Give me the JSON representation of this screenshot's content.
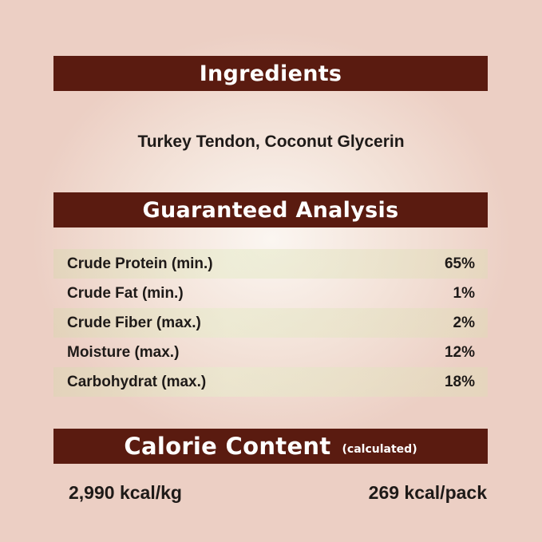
{
  "ingredients": {
    "title": "Ingredients",
    "text": "Turkey Tendon, Coconut Glycerin"
  },
  "analysis": {
    "title": "Guaranteed Analysis",
    "rows": [
      {
        "label": "Crude Protein (min.)",
        "value": "65%"
      },
      {
        "label": "Crude Fat (min.)",
        "value": "1%"
      },
      {
        "label": "Crude Fiber (max.)",
        "value": "2%"
      },
      {
        "label": "Moisture (max.)",
        "value": "12%"
      },
      {
        "label": "Carbohydrat (max.)",
        "value": "18%"
      }
    ]
  },
  "calorie": {
    "title": "Calorie Content",
    "subtitle": "(calculated)",
    "per_kg": "2,990 kcal/kg",
    "per_pack": "269 kcal/pack"
  },
  "colors": {
    "banner": "#5a1b10",
    "background": "#f3e2d8"
  }
}
